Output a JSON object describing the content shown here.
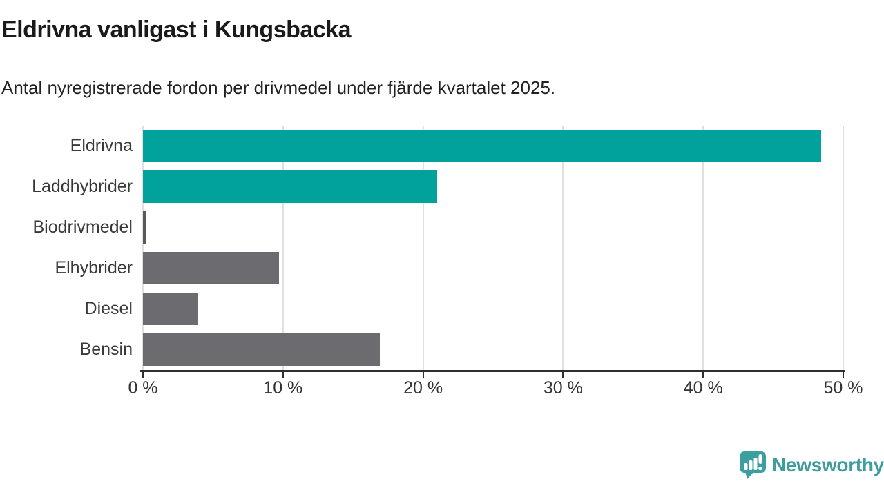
{
  "header": {
    "title": "Eldrivna vanligast i Kungsbacka",
    "subtitle": "Antal nyregistrerade fordon per drivmedel under fjärde kvartalet 2025."
  },
  "chart_data": {
    "type": "bar",
    "orientation": "horizontal",
    "title": "Eldrivna vanligast i Kungsbacka",
    "subtitle": "Antal nyregistrerade fordon per drivmedel under fjärde kvartalet 2025.",
    "categories": [
      "Eldrivna",
      "Laddhybrider",
      "Biodrivmedel",
      "Elhybrider",
      "Diesel",
      "Bensin"
    ],
    "values": [
      48.4,
      21.0,
      0.2,
      9.7,
      3.9,
      16.9
    ],
    "unit": "%",
    "xlim": [
      0,
      50
    ],
    "x_tick_values": [
      0,
      10,
      20,
      30,
      40,
      50
    ],
    "x_tick_labels": [
      "0 %",
      "10 %",
      "20 %",
      "30 %",
      "40 %",
      "50 %"
    ],
    "bar_colors": [
      "#00a29b",
      "#00a29b",
      "#5a5a5e",
      "#6b6b70",
      "#6b6b70",
      "#6b6b70"
    ],
    "grid": true,
    "legend": false
  },
  "colors": {
    "accent_teal": "#00a29b",
    "bar_gray": "#6b6b70",
    "gridline": "#e0e0e0",
    "axis": "#2e2e33",
    "text_dark": "#1a1a1a",
    "text_label": "#383838",
    "brand_teal": "#3e9d9d"
  },
  "footer": {
    "brand": "Newsworthy",
    "logo_icon": "newsworthy-speech-bubble-chart-icon"
  }
}
